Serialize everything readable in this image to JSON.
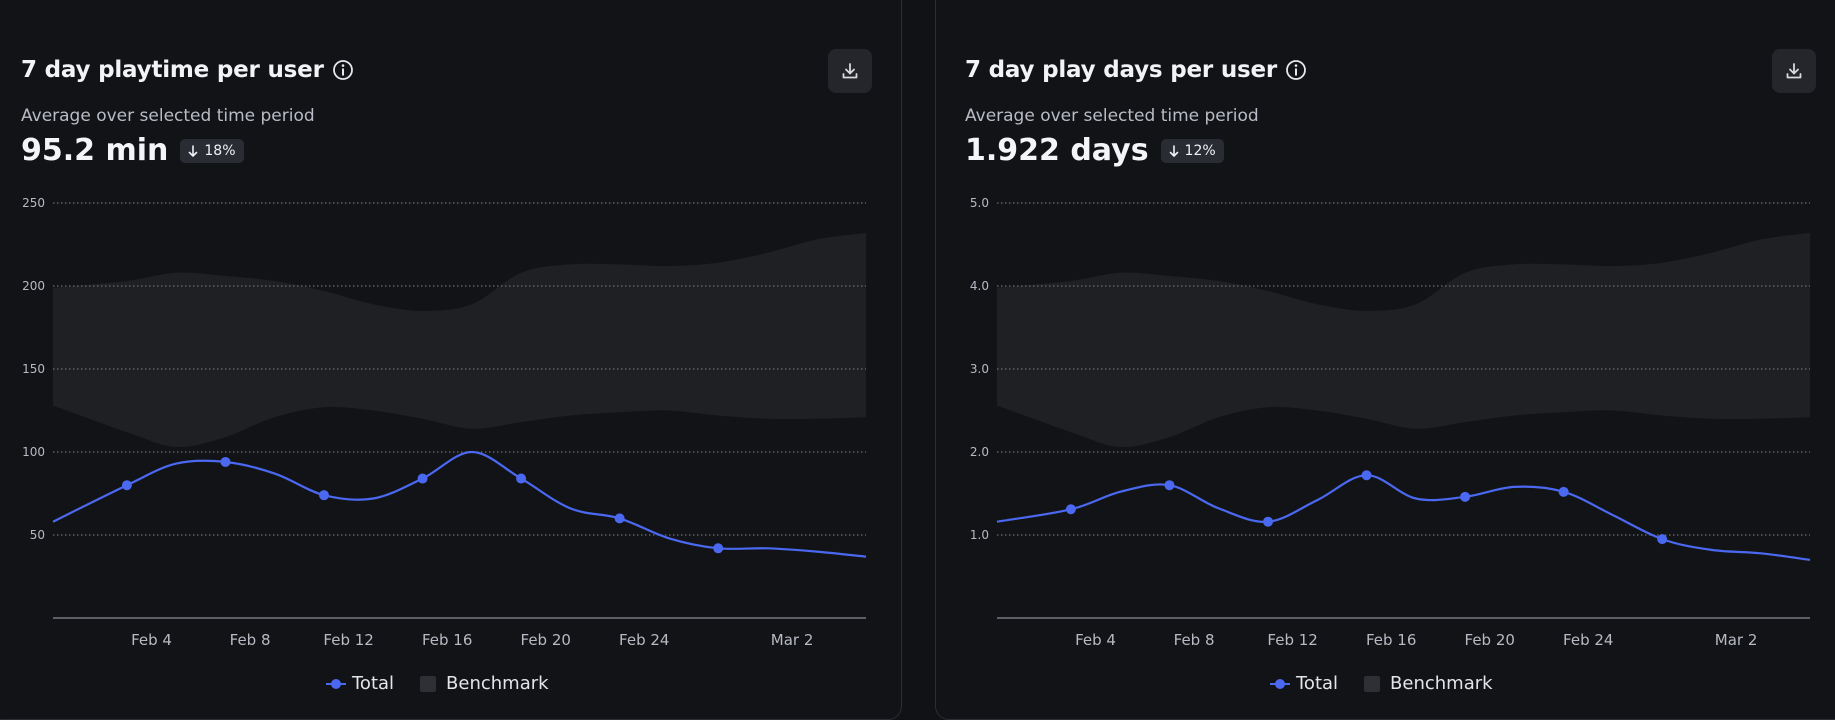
{
  "colors": {
    "series": "#4a69f0",
    "benchmark_band": "#1f2024",
    "grid": "#6b6e78",
    "axis": "#8a8d96",
    "tick_text": "#b7bac3"
  },
  "panels": [
    {
      "title": "7 day playtime per user",
      "info_icon": "info-icon",
      "download_icon": "download-icon",
      "subtitle": "Average over selected time period",
      "value": "95.2 min",
      "change": "18%",
      "change_direction": "down",
      "legend": {
        "total": "Total",
        "benchmark": "Benchmark"
      }
    },
    {
      "title": "7 day play days per user",
      "info_icon": "info-icon",
      "download_icon": "download-icon",
      "subtitle": "Average over selected time period",
      "value": "1.922 days",
      "change": "12%",
      "change_direction": "down",
      "legend": {
        "total": "Total",
        "benchmark": "Benchmark"
      }
    }
  ],
  "chart_data": [
    {
      "type": "area",
      "title": "7 day playtime per user",
      "xlabel": "",
      "ylabel": "",
      "x_ticks": [
        "Feb 4",
        "Feb 8",
        "Feb 12",
        "Feb 16",
        "Feb 20",
        "Feb 24",
        "Mar 2"
      ],
      "y_ticks": [
        "50",
        "100",
        "150",
        "200",
        "250"
      ],
      "y_tick_values": [
        50,
        100,
        150,
        200,
        250
      ],
      "ylim": [
        0,
        250
      ],
      "grid": true,
      "legend": "bottom-center",
      "series": [
        {
          "name": "Total",
          "type": "line",
          "x": [
            "Jan 31",
            "Feb 3",
            "Feb 5",
            "Feb 7",
            "Feb 9",
            "Feb 11",
            "Feb 13",
            "Feb 15",
            "Feb 17",
            "Feb 19",
            "Feb 21",
            "Feb 23",
            "Feb 25",
            "Feb 27",
            "Mar 1",
            "Mar 3",
            "Mar 5"
          ],
          "values": [
            58,
            80,
            93,
            94,
            87,
            74,
            72,
            84,
            100,
            84,
            66,
            60,
            48,
            42,
            42,
            40,
            37
          ],
          "markers": [
            "Feb 3",
            "Feb 7",
            "Feb 11",
            "Feb 15",
            "Feb 19",
            "Feb 23",
            "Feb 27"
          ]
        },
        {
          "name": "Benchmark",
          "type": "band",
          "x": [
            "Jan 31",
            "Feb 3",
            "Feb 5",
            "Feb 7",
            "Feb 9",
            "Feb 11",
            "Feb 13",
            "Feb 15",
            "Feb 17",
            "Feb 19",
            "Feb 21",
            "Feb 23",
            "Feb 25",
            "Feb 27",
            "Mar 1",
            "Mar 3",
            "Mar 5"
          ],
          "upper": [
            199,
            203,
            208,
            206,
            203,
            197,
            189,
            185,
            189,
            208,
            213,
            213,
            212,
            214,
            220,
            228,
            232
          ],
          "lower": [
            128,
            112,
            103,
            109,
            121,
            127,
            125,
            120,
            114,
            118,
            122,
            124,
            125,
            122,
            120,
            120,
            121
          ]
        }
      ]
    },
    {
      "type": "area",
      "title": "7 day play days per user",
      "xlabel": "",
      "ylabel": "",
      "x_ticks": [
        "Feb 4",
        "Feb 8",
        "Feb 12",
        "Feb 16",
        "Feb 20",
        "Feb 24",
        "Mar 2"
      ],
      "y_ticks": [
        "1.0",
        "2.0",
        "3.0",
        "4.0",
        "5.0"
      ],
      "y_tick_values": [
        1,
        2,
        3,
        4,
        5
      ],
      "ylim": [
        0,
        5
      ],
      "grid": true,
      "legend": "bottom-center",
      "series": [
        {
          "name": "Total",
          "type": "line",
          "x": [
            "Jan 31",
            "Feb 3",
            "Feb 5",
            "Feb 7",
            "Feb 9",
            "Feb 11",
            "Feb 13",
            "Feb 15",
            "Feb 17",
            "Feb 19",
            "Feb 21",
            "Feb 23",
            "Feb 25",
            "Feb 27",
            "Mar 1",
            "Mar 3",
            "Mar 5"
          ],
          "values": [
            1.16,
            1.31,
            1.52,
            1.6,
            1.32,
            1.16,
            1.42,
            1.72,
            1.44,
            1.46,
            1.58,
            1.52,
            1.24,
            0.95,
            0.82,
            0.78,
            0.7
          ],
          "markers": [
            "Feb 3",
            "Feb 7",
            "Feb 11",
            "Feb 15",
            "Feb 19",
            "Feb 23",
            "Feb 27"
          ]
        },
        {
          "name": "Benchmark",
          "type": "band",
          "x": [
            "Jan 31",
            "Feb 3",
            "Feb 5",
            "Feb 7",
            "Feb 9",
            "Feb 11",
            "Feb 13",
            "Feb 15",
            "Feb 17",
            "Feb 19",
            "Feb 21",
            "Feb 23",
            "Feb 25",
            "Feb 27",
            "Mar 1",
            "Mar 3",
            "Mar 5"
          ],
          "upper": [
            3.98,
            4.06,
            4.16,
            4.12,
            4.06,
            3.94,
            3.78,
            3.7,
            3.78,
            4.16,
            4.26,
            4.26,
            4.24,
            4.28,
            4.4,
            4.56,
            4.64
          ],
          "lower": [
            2.56,
            2.24,
            2.06,
            2.18,
            2.42,
            2.54,
            2.5,
            2.4,
            2.28,
            2.36,
            2.44,
            2.48,
            2.5,
            2.44,
            2.4,
            2.4,
            2.42
          ]
        }
      ]
    }
  ]
}
